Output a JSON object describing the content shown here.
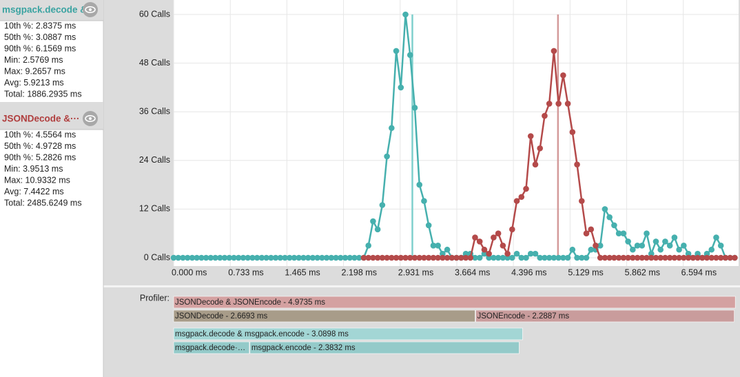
{
  "chart_data": {
    "type": "line",
    "x": [
      0,
      0.06,
      0.12,
      0.18,
      0.24,
      0.3,
      0.36,
      0.42,
      0.48,
      0.54,
      0.6,
      0.66,
      0.72,
      0.78,
      0.84,
      0.9,
      0.96,
      1.02,
      1.08,
      1.14,
      1.2,
      1.26,
      1.32,
      1.38,
      1.44,
      1.5,
      1.56,
      1.62,
      1.68,
      1.74,
      1.8,
      1.86,
      1.92,
      1.98,
      2.04,
      2.1,
      2.16,
      2.22,
      2.28,
      2.34,
      2.4,
      2.46,
      2.52,
      2.58,
      2.64,
      2.7,
      2.76,
      2.82,
      2.88,
      2.94,
      3,
      3.06,
      3.12,
      3.18,
      3.24,
      3.3,
      3.36,
      3.42,
      3.48,
      3.54,
      3.6,
      3.66,
      3.72,
      3.78,
      3.84,
      3.9,
      3.96,
      4.02,
      4.08,
      4.14,
      4.2,
      4.26,
      4.32,
      4.38,
      4.44,
      4.5,
      4.56,
      4.62,
      4.68,
      4.74,
      4.8,
      4.86,
      4.92,
      4.98,
      5.04,
      5.1,
      5.16,
      5.22,
      5.28,
      5.34,
      5.4,
      5.46,
      5.52,
      5.58,
      5.64,
      5.7,
      5.76,
      5.82,
      5.88,
      5.94,
      6,
      6.06,
      6.12,
      6.18,
      6.24,
      6.3,
      6.36,
      6.42,
      6.48,
      6.54,
      6.6,
      6.66,
      6.72,
      6.78,
      6.84,
      6.9,
      6.96,
      7.02,
      7.08,
      7.14,
      7.2,
      7.26
    ],
    "series": [
      {
        "color": "#46b0ae",
        "values": [
          0,
          0,
          0,
          0,
          0,
          0,
          0,
          0,
          0,
          0,
          0,
          0,
          0,
          0,
          0,
          0,
          0,
          0,
          0,
          0,
          0,
          0,
          0,
          0,
          0,
          0,
          0,
          0,
          0,
          0,
          0,
          0,
          0,
          0,
          0,
          0,
          0,
          0,
          0,
          0,
          0,
          0,
          3,
          9,
          7,
          13,
          25,
          32,
          51,
          42,
          60,
          50,
          37,
          18,
          14,
          8,
          3,
          3,
          1,
          2,
          0,
          0,
          0,
          1,
          1,
          0,
          0,
          1,
          0,
          0,
          0,
          0,
          0,
          0,
          1,
          0,
          0,
          1,
          1,
          0,
          0,
          0,
          0,
          0,
          0,
          0,
          2,
          0,
          0,
          0,
          2,
          2,
          3,
          12,
          10,
          8,
          6,
          6,
          4,
          2,
          3,
          3,
          6,
          1,
          4,
          2,
          4,
          3,
          5,
          2,
          3,
          1,
          0,
          1,
          0,
          1,
          2,
          5,
          3,
          0,
          0,
          0
        ]
      },
      {
        "color": "#b44a4a",
        "values": [
          null,
          null,
          null,
          null,
          null,
          null,
          null,
          null,
          null,
          null,
          null,
          null,
          null,
          null,
          null,
          null,
          null,
          null,
          null,
          null,
          null,
          null,
          null,
          null,
          null,
          null,
          null,
          null,
          null,
          null,
          null,
          null,
          null,
          null,
          null,
          null,
          null,
          null,
          null,
          null,
          null,
          0,
          0,
          0,
          0,
          0,
          0,
          0,
          0,
          0,
          0,
          0,
          0,
          0,
          0,
          0,
          0,
          0,
          0,
          0,
          0,
          0,
          0,
          0,
          0,
          5,
          4,
          2,
          1,
          5,
          6,
          3,
          1,
          7,
          14,
          15,
          17,
          30,
          23,
          27,
          35,
          38,
          51,
          38,
          45,
          38,
          31,
          23,
          14,
          6,
          7,
          3,
          0,
          0,
          0,
          0,
          0,
          0,
          0,
          0,
          0,
          0,
          0,
          0,
          0,
          0,
          0,
          0,
          0,
          0,
          0,
          0,
          0,
          0,
          0,
          0,
          0,
          0,
          0,
          0,
          0,
          0
        ]
      }
    ],
    "markers": [
      {
        "value": 3.0887,
        "color": "#7fd0cd"
      },
      {
        "value": 4.9728,
        "color": "#d49a9a"
      }
    ],
    "xlim": [
      0,
      7.31
    ],
    "xticks": [
      {
        "value": 0,
        "label": "0.000 ms"
      },
      {
        "value": 0.733,
        "label": "0.733 ms"
      },
      {
        "value": 1.465,
        "label": "1.465 ms"
      },
      {
        "value": 2.198,
        "label": "2.198 ms"
      },
      {
        "value": 2.931,
        "label": "2.931 ms"
      },
      {
        "value": 3.664,
        "label": "3.664 ms"
      },
      {
        "value": 4.396,
        "label": "4.396 ms"
      },
      {
        "value": 5.129,
        "label": "5.129 ms"
      },
      {
        "value": 5.862,
        "label": "5.862 ms"
      },
      {
        "value": 6.594,
        "label": "6.594 ms"
      }
    ],
    "ylim": [
      0,
      60
    ],
    "yticks": [
      {
        "value": 0,
        "label": "0 Calls"
      },
      {
        "value": 12,
        "label": "12 Calls"
      },
      {
        "value": 24,
        "label": "24 Calls"
      },
      {
        "value": 36,
        "label": "36 Calls"
      },
      {
        "value": 48,
        "label": "48 Calls"
      },
      {
        "value": 60,
        "label": "60 Calls"
      }
    ],
    "grid": true
  },
  "panels": [
    {
      "title": "msgpack.decode &·",
      "color": "#3aa3a1",
      "stats": [
        "10th %: 2.8375 ms",
        "50th %: 3.0887 ms",
        "90th %: 6.1569 ms",
        "Min: 2.5769 ms",
        "Max: 9.2657 ms",
        "Avg: 5.9213 ms",
        "Total: 1886.2935 ms"
      ]
    },
    {
      "title": "JSONDecode &···",
      "color": "#b03e3e",
      "stats": [
        "10th %: 4.5564 ms",
        "50th %: 4.9728 ms",
        "90th %: 5.2826 ms",
        "Min: 3.9513 ms",
        "Max: 10.9332 ms",
        "Avg: 7.4422 ms",
        "Total: 2485.6249 ms"
      ]
    }
  ],
  "profiler": {
    "label": "Profiler:",
    "rows": [
      [
        {
          "label": "JSONDecode & JSONEncode - 4.9735 ms",
          "value": 4.9735,
          "color": "#d4a1a1"
        }
      ],
      [
        {
          "label": "JSONDecode - 2.6693 ms",
          "value": 2.6693,
          "color": "#a89c89"
        },
        {
          "label": "JSONEncode - 2.2887 ms",
          "value": 2.2887,
          "color": "#c99c9c"
        }
      ],
      [
        {
          "label": "msgpack.decode & msgpack.encode - 3.0898 ms",
          "value": 3.0898,
          "color": "#a3d6d5"
        }
      ],
      [
        {
          "label": "msgpack.decode·…",
          "value": 0.67,
          "color": "#94cac9"
        },
        {
          "label": "msgpack.encode - 2.3832 ms",
          "value": 2.3832,
          "color": "#94cac9"
        }
      ]
    ]
  }
}
